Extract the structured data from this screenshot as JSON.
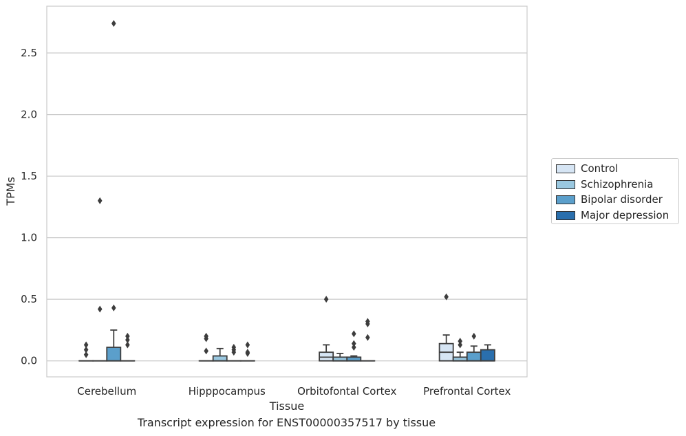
{
  "chart_data": {
    "type": "boxplot",
    "xlabel": "Tissue",
    "ylabel": "TPMs",
    "caption": "Transcript expression for ENST00000357517 by tissue",
    "ylim": [
      -0.13,
      2.88
    ],
    "yticks": [
      "0.0",
      "0.5",
      "1.0",
      "1.5",
      "2.0",
      "2.5"
    ],
    "grid": "horizontal",
    "legend_position": "right",
    "categories": [
      "Cerebellum",
      "Hipppocampus",
      "Orbitofontal Cortex",
      "Prefrontal Cortex"
    ],
    "series": [
      {
        "name": "Control",
        "color": "#d6e5f4",
        "boxes": [
          {
            "q1": 0,
            "median": 0,
            "q3": 0,
            "whisker_low": 0,
            "whisker_high": 0,
            "outliers": [
              0.05,
              0.09,
              0.13
            ]
          },
          {
            "q1": 0,
            "median": 0,
            "q3": 0,
            "whisker_low": 0,
            "whisker_high": 0,
            "outliers": [
              0.08,
              0.18,
              0.2
            ]
          },
          {
            "q1": 0,
            "median": 0.03,
            "q3": 0.07,
            "whisker_low": 0,
            "whisker_high": 0.13,
            "outliers": [
              0.5
            ]
          },
          {
            "q1": 0,
            "median": 0.07,
            "q3": 0.14,
            "whisker_low": 0,
            "whisker_high": 0.21,
            "outliers": [
              0.52
            ]
          }
        ]
      },
      {
        "name": "Schizophrenia",
        "color": "#9ac8e0",
        "boxes": [
          {
            "q1": 0,
            "median": 0,
            "q3": 0,
            "whisker_low": 0,
            "whisker_high": 0,
            "outliers": [
              0.42,
              1.3
            ]
          },
          {
            "q1": 0,
            "median": 0,
            "q3": 0.04,
            "whisker_low": 0,
            "whisker_high": 0.1,
            "outliers": []
          },
          {
            "q1": 0,
            "median": 0,
            "q3": 0.03,
            "whisker_low": 0,
            "whisker_high": 0.06,
            "outliers": []
          },
          {
            "q1": 0,
            "median": 0,
            "q3": 0.03,
            "whisker_low": 0,
            "whisker_high": 0.07,
            "outliers": [
              0.13,
              0.16
            ]
          }
        ]
      },
      {
        "name": "Bipolar disorder",
        "color": "#5b9fcb",
        "boxes": [
          {
            "q1": 0,
            "median": 0,
            "q3": 0.11,
            "whisker_low": 0,
            "whisker_high": 0.25,
            "outliers": [
              0.43,
              2.74
            ]
          },
          {
            "q1": 0,
            "median": 0,
            "q3": 0,
            "whisker_low": 0,
            "whisker_high": 0,
            "outliers": [
              0.07,
              0.09,
              0.11
            ]
          },
          {
            "q1": 0,
            "median": 0,
            "q3": 0.03,
            "whisker_low": 0,
            "whisker_high": 0.04,
            "outliers": [
              0.11,
              0.14,
              0.22
            ]
          },
          {
            "q1": 0,
            "median": 0,
            "q3": 0.07,
            "whisker_low": 0,
            "whisker_high": 0.12,
            "outliers": [
              0.2
            ]
          }
        ]
      },
      {
        "name": "Major depression",
        "color": "#2a6fad",
        "boxes": [
          {
            "q1": 0,
            "median": 0,
            "q3": 0,
            "whisker_low": 0,
            "whisker_high": 0,
            "outliers": [
              0.13,
              0.17,
              0.2
            ]
          },
          {
            "q1": 0,
            "median": 0,
            "q3": 0,
            "whisker_low": 0,
            "whisker_high": 0,
            "outliers": [
              0.06,
              0.07,
              0.13
            ]
          },
          {
            "q1": 0,
            "median": 0,
            "q3": 0,
            "whisker_low": 0,
            "whisker_high": 0,
            "outliers": [
              0.19,
              0.3,
              0.32
            ]
          },
          {
            "q1": 0,
            "median": 0,
            "q3": 0.09,
            "whisker_low": 0,
            "whisker_high": 0.13,
            "outliers": []
          }
        ]
      }
    ]
  }
}
